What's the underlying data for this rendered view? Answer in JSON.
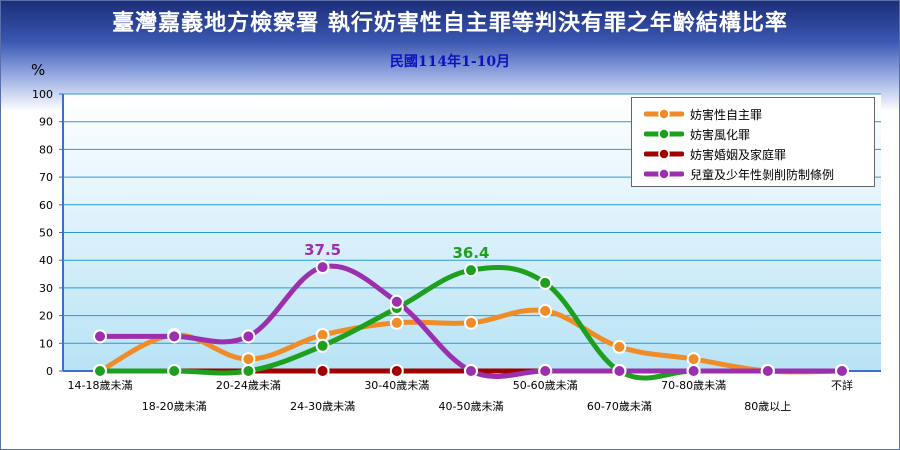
{
  "title": "臺灣嘉義地方檢察署 執行妨害性自主罪等判決有罪之年齡結構比率",
  "subtitle": "民國114年1-10月",
  "colors": {
    "orange": "#f08c28",
    "green": "#1ea01e",
    "darkred": "#a00000",
    "purple": "#9b2fae"
  },
  "chart_data": {
    "type": "line",
    "title": "臺灣嘉義地方檢察署 執行妨害性自主罪等判決有罪之年齡結構比率",
    "subtitle": "民國114年1-10月",
    "ylabel": "%",
    "ylim": [
      0,
      100
    ],
    "yticks": [
      0,
      10,
      20,
      30,
      40,
      50,
      60,
      70,
      80,
      90,
      100
    ],
    "grid": true,
    "legend_position": "top-right",
    "categories": [
      "14-18歲未滿",
      "18-20歲未滿",
      "20-24歲未滿",
      "24-30歲未滿",
      "30-40歲未滿",
      "40-50歲未滿",
      "50-60歲未滿",
      "60-70歲未滿",
      "70-80歲未滿",
      "80歲以上",
      "不詳"
    ],
    "series": [
      {
        "name": "妨害性自主罪",
        "color": "orange",
        "values": [
          0,
          13,
          4.3,
          13,
          17.4,
          17.4,
          21.7,
          8.7,
          4.3,
          0,
          0
        ]
      },
      {
        "name": "妨害風化罪",
        "color": "green",
        "values": [
          0,
          0,
          0,
          9.1,
          22.7,
          36.4,
          31.8,
          0,
          0,
          0,
          0
        ]
      },
      {
        "name": "妨害婚姻及家庭罪",
        "color": "darkred",
        "values": [
          0,
          0,
          0,
          0,
          0,
          0,
          0,
          0,
          0,
          0,
          0
        ]
      },
      {
        "name": "兒童及少年性剝削防制條例",
        "color": "purple",
        "values": [
          12.5,
          12.5,
          12.5,
          37.5,
          25,
          0,
          0,
          0,
          0,
          0,
          0
        ]
      }
    ],
    "annotations": [
      {
        "text": "37.5",
        "series": "兒童及少年性剝削防制條例",
        "category_index": 3
      },
      {
        "text": "36.4",
        "series": "妨害風化罪",
        "category_index": 5
      }
    ]
  }
}
